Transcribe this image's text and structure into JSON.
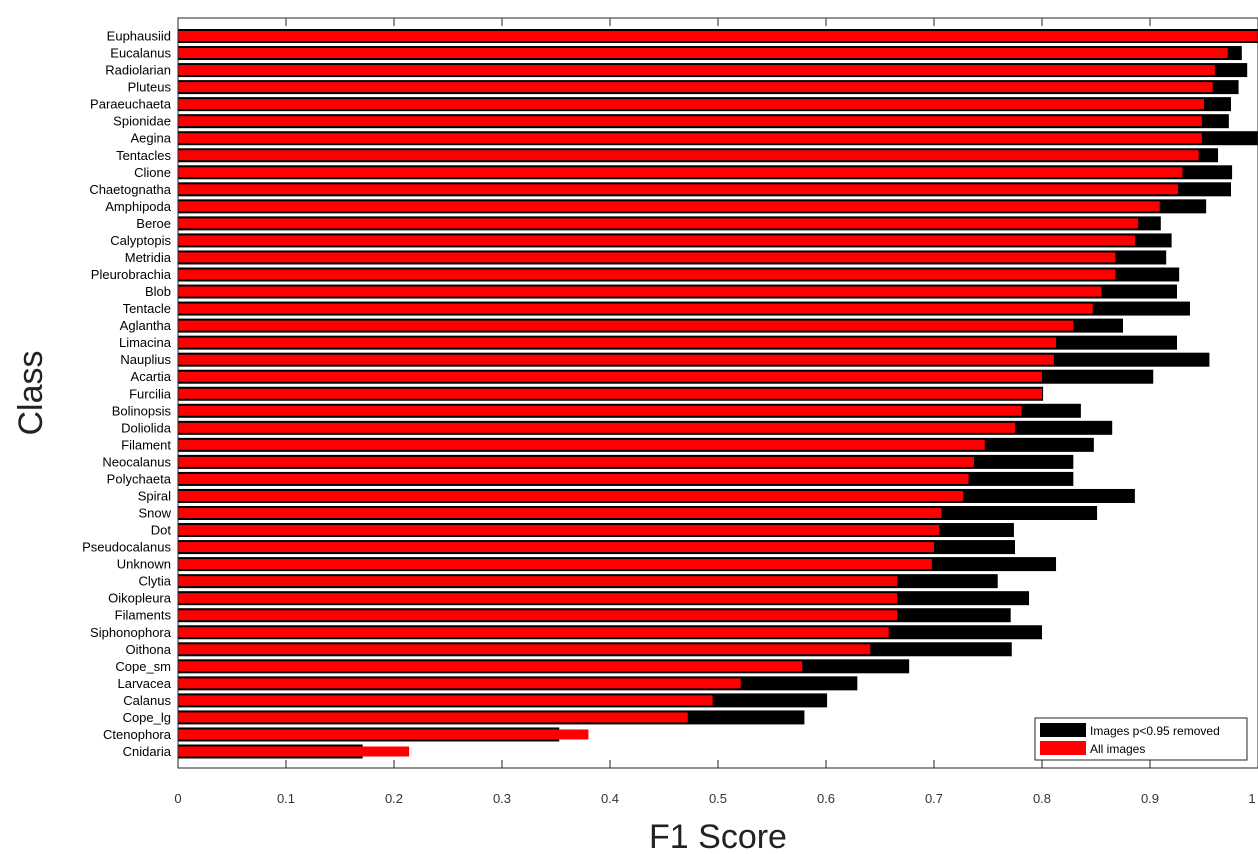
{
  "chart_data": {
    "type": "bar",
    "orientation": "horizontal",
    "xlabel": "F1 Score",
    "ylabel": "Class",
    "xlim": [
      0,
      1
    ],
    "xticks": [
      "0",
      "0.1",
      "0.2",
      "0.3",
      "0.4",
      "0.5",
      "0.6",
      "0.7",
      "0.8",
      "0.9",
      "1"
    ],
    "grid": false,
    "legend_position": "bottom-right",
    "categories": [
      "Euphausiid",
      "Eucalanus",
      "Radiolarian",
      "Pluteus",
      "Paraeuchaeta",
      "Spionidae",
      "Aegina",
      "Tentacles",
      "Clione",
      "Chaetognatha",
      "Amphipoda",
      "Beroe",
      "Calyptopis",
      "Metridia",
      "Pleurobrachia",
      "Blob",
      "Tentacle",
      "Aglantha",
      "Limacina",
      "Nauplius",
      "Acartia",
      "Furcilia",
      "Bolinopsis",
      "Doliolida",
      "Filament",
      "Neocalanus",
      "Polychaeta",
      "Spiral",
      "Snow",
      "Dot",
      "Pseudocalanus",
      "Unknown",
      "Clytia",
      "Oikopleura",
      "Filaments",
      "Siphonophora",
      "Oithona",
      "Cope_sm",
      "Larvacea",
      "Calanus",
      "Cope_lg",
      "Ctenophora",
      "Cnidaria"
    ],
    "series": [
      {
        "name": "Images p<0.95 removed",
        "color": "#000000",
        "values": [
          1.0,
          0.985,
          0.99,
          0.982,
          0.975,
          0.973,
          1.0,
          0.963,
          0.976,
          0.975,
          0.952,
          0.91,
          0.92,
          0.915,
          0.927,
          0.925,
          0.937,
          0.875,
          0.925,
          0.955,
          0.903,
          0.801,
          0.836,
          0.865,
          0.848,
          0.829,
          0.829,
          0.886,
          0.851,
          0.774,
          0.775,
          0.813,
          0.759,
          0.788,
          0.771,
          0.8,
          0.772,
          0.677,
          0.629,
          0.601,
          0.58,
          0.353,
          0.171
        ]
      },
      {
        "name": "All images",
        "color": "#ff0000",
        "values": [
          1.0,
          0.972,
          0.96,
          0.958,
          0.95,
          0.948,
          0.948,
          0.945,
          0.93,
          0.926,
          0.909,
          0.889,
          0.886,
          0.868,
          0.868,
          0.855,
          0.847,
          0.829,
          0.813,
          0.811,
          0.8,
          0.8,
          0.781,
          0.775,
          0.747,
          0.737,
          0.732,
          0.727,
          0.707,
          0.705,
          0.7,
          0.698,
          0.666,
          0.666,
          0.666,
          0.658,
          0.641,
          0.578,
          0.521,
          0.495,
          0.472,
          0.38,
          0.214
        ]
      }
    ]
  }
}
